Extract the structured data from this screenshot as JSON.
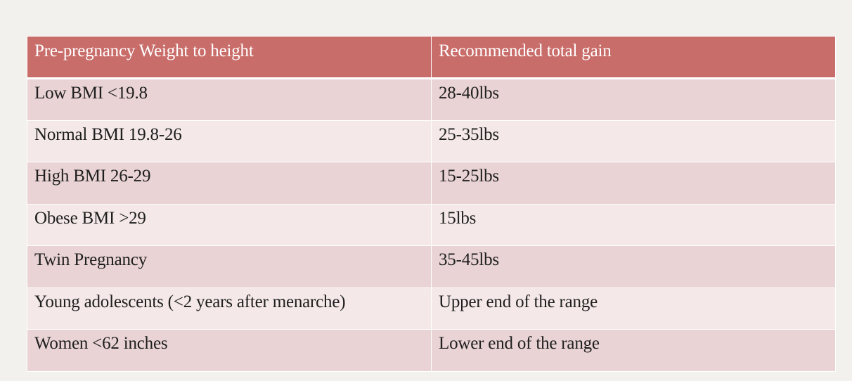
{
  "colors": {
    "header_bg": "#c96d6a",
    "row_dark": "#e9d3d4",
    "row_light": "#f4e8e8",
    "page_bg": "#f2f1ed"
  },
  "table": {
    "headers": [
      "Pre-pregnancy Weight to height",
      "Recommended total gain"
    ],
    "rows": [
      [
        "Low BMI <19.8",
        "28-40lbs"
      ],
      [
        "Normal BMI 19.8-26",
        "25-35lbs"
      ],
      [
        "High BMI 26-29",
        "15-25lbs"
      ],
      [
        "Obese BMI >29",
        "15lbs"
      ],
      [
        "Twin Pregnancy",
        "35-45lbs"
      ],
      [
        "Young adolescents (<2 years after menarche)",
        "Upper end of the range"
      ],
      [
        "Women <62 inches",
        "Lower end of the range"
      ]
    ]
  }
}
